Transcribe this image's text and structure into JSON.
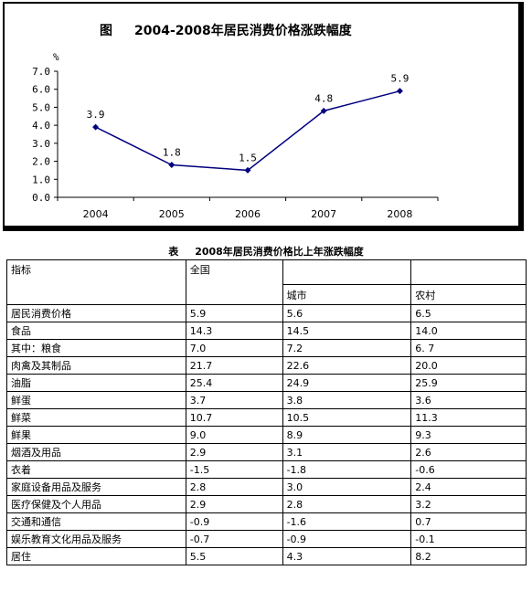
{
  "chart_data": {
    "type": "line",
    "title_prefix": "图",
    "title": "2004-2008年居民消费价格涨跌幅度",
    "ylabel": "%",
    "xlabel": "",
    "categories": [
      "2004",
      "2005",
      "2006",
      "2007",
      "2008"
    ],
    "series": [
      {
        "values": [
          3.9,
          1.8,
          1.5,
          4.8,
          5.9
        ]
      }
    ],
    "data_labels": [
      "3.9",
      "1.8",
      "1.5",
      "4.8",
      "5.9"
    ],
    "y_ticks": [
      "0.0",
      "1.0",
      "2.0",
      "3.0",
      "4.0",
      "5.0",
      "6.0",
      "7.0"
    ],
    "ylim": [
      0,
      7
    ],
    "grid": false,
    "legend": "none",
    "line_color": "#00007f"
  },
  "table": {
    "prefix": "表",
    "title": "2008年居民消费价格比上年涨跌幅度",
    "col_indicator": "指标",
    "col_national": "全国",
    "col_urban": "城市",
    "col_rural": "农村",
    "rows": [
      {
        "label": "居民消费价格",
        "national": "5.9",
        "urban": "5.6",
        "rural": "6.5"
      },
      {
        "label": "食品",
        "national": "14.3",
        "urban": "14.5",
        "rural": "14.0"
      },
      {
        "label": "其中：粮食",
        "national": "7.0",
        "urban": "7.2",
        "rural": "6. 7"
      },
      {
        "label": "肉禽及其制品",
        "national": "21.7",
        "urban": "22.6",
        "rural": "20.0"
      },
      {
        "label": "油脂",
        "national": "25.4",
        "urban": "24.9",
        "rural": "25.9"
      },
      {
        "label": "鲜蛋",
        "national": "3.7",
        "urban": "3.8",
        "rural": "3.6"
      },
      {
        "label": "鲜菜",
        "national": "10.7",
        "urban": "10.5",
        "rural": "11.3"
      },
      {
        "label": "鲜果",
        "national": "9.0",
        "urban": "8.9",
        "rural": "9.3"
      },
      {
        "label": "烟酒及用品",
        "national": "2.9",
        "urban": "3.1",
        "rural": "2.6"
      },
      {
        "label": "衣着",
        "national": "-1.5",
        "urban": "-1.8",
        "rural": "-0.6"
      },
      {
        "label": "家庭设备用品及服务",
        "national": "2.8",
        "urban": "3.0",
        "rural": "2.4"
      },
      {
        "label": "医疗保健及个人用品",
        "national": "2.9",
        "urban": "2.8",
        "rural": "3.2"
      },
      {
        "label": "交通和通信",
        "national": "-0.9",
        "urban": "-1.6",
        "rural": "0.7"
      },
      {
        "label": "娱乐教育文化用品及服务",
        "national": "-0.7",
        "urban": "-0.9",
        "rural": "-0.1"
      },
      {
        "label": "居住",
        "national": "5.5",
        "urban": "4.3",
        "rural": "8.2"
      }
    ]
  }
}
